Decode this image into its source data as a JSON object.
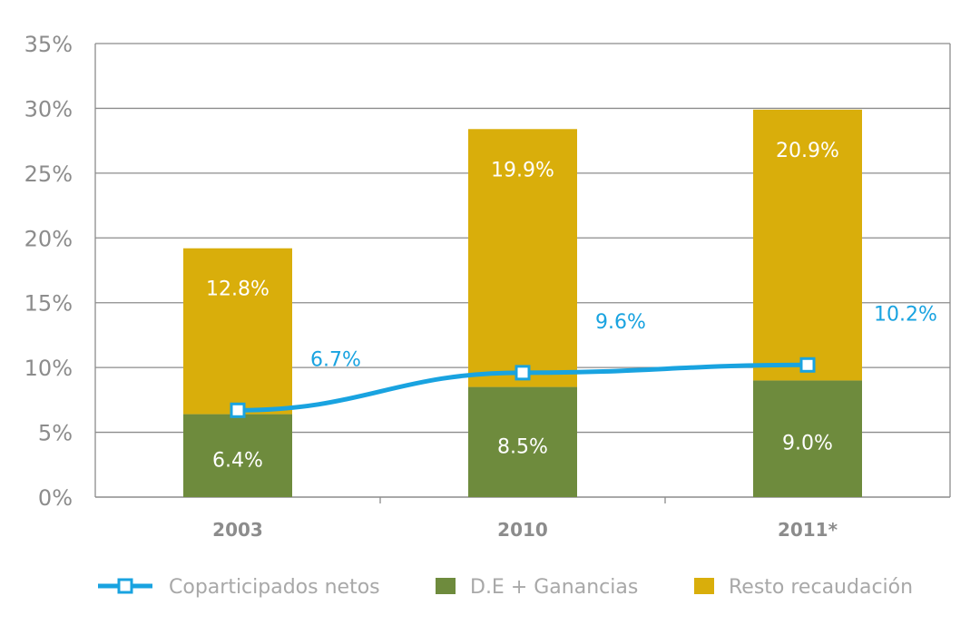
{
  "chart_data": {
    "type": "bar",
    "stacked": true,
    "categories": [
      "2003",
      "2010",
      "2011*"
    ],
    "series": [
      {
        "name": "D.E + Ganancias",
        "type": "bar",
        "values": [
          6.4,
          8.5,
          9.0
        ],
        "labels": [
          "6.4%",
          "8.5%",
          "9.0%"
        ],
        "color": "#6e8b3d"
      },
      {
        "name": "Resto recaudación",
        "type": "bar",
        "values": [
          12.8,
          19.9,
          20.9
        ],
        "labels": [
          "12.8%",
          "19.9%",
          "20.9%"
        ],
        "color": "#d9ae0b"
      },
      {
        "name": "Coparticipados netos",
        "type": "line",
        "values": [
          6.7,
          9.6,
          10.2
        ],
        "labels": [
          "6.7%",
          "9.6%",
          "10.2%"
        ],
        "color": "#19a3e0"
      }
    ],
    "yticks": [
      "0%",
      "5%",
      "10%",
      "15%",
      "20%",
      "25%",
      "30%",
      "35%"
    ],
    "ylim": [
      0,
      35
    ],
    "grid": true,
    "legend_position": "bottom"
  }
}
